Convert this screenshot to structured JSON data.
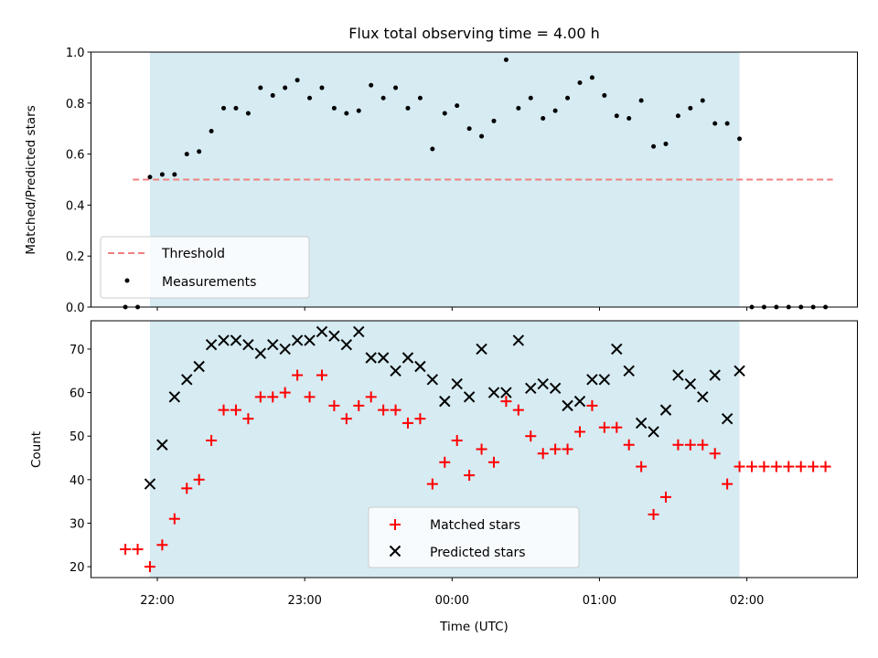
{
  "colors": {
    "shade": "#add8e6",
    "threshold": "#f08080",
    "measurements": "#000000",
    "matched": "#ff0000",
    "predicted": "#000000"
  },
  "chart_data": [
    {
      "type": "scatter",
      "title": "Flux total observing time = 4.00 h",
      "xlabel": "",
      "ylabel": "Matched/Predicted stars",
      "ylim": [
        0,
        1.0
      ],
      "yticks": [
        "0.0",
        "0.2",
        "0.4",
        "0.6",
        "0.8",
        "1.0"
      ],
      "shaded_time_range": [
        "21:57",
        "01:57"
      ],
      "threshold": {
        "name": "Threshold",
        "value": 0.5,
        "x_range": [
          "21:50",
          "02:35"
        ]
      },
      "series": [
        {
          "name": "Measurements",
          "style": "dot",
          "x": [
            "21:47",
            "21:52",
            "21:57",
            "22:02",
            "22:07",
            "22:12",
            "22:17",
            "22:22",
            "22:27",
            "22:32",
            "22:37",
            "22:42",
            "22:47",
            "22:52",
            "22:57",
            "23:02",
            "23:07",
            "23:12",
            "23:17",
            "23:22",
            "23:27",
            "23:32",
            "23:37",
            "23:42",
            "23:47",
            "23:52",
            "23:57",
            "00:02",
            "00:07",
            "00:12",
            "00:17",
            "00:22",
            "00:27",
            "00:32",
            "00:37",
            "00:42",
            "00:47",
            "00:52",
            "00:57",
            "01:02",
            "01:07",
            "01:12",
            "01:17",
            "01:22",
            "01:27",
            "01:32",
            "01:37",
            "01:42",
            "01:47",
            "01:52",
            "01:57",
            "02:02",
            "02:07",
            "02:12",
            "02:17",
            "02:22",
            "02:27",
            "02:32"
          ],
          "y": [
            0.0,
            0.0,
            0.51,
            0.52,
            0.52,
            0.6,
            0.61,
            0.69,
            0.78,
            0.78,
            0.76,
            0.86,
            0.83,
            0.86,
            0.89,
            0.82,
            0.86,
            0.78,
            0.76,
            0.77,
            0.87,
            0.82,
            0.86,
            0.78,
            0.82,
            0.62,
            0.76,
            0.79,
            0.7,
            0.67,
            0.73,
            0.97,
            0.78,
            0.82,
            0.74,
            0.77,
            0.82,
            0.88,
            0.9,
            0.83,
            0.75,
            0.74,
            0.81,
            0.63,
            0.64,
            0.75,
            0.78,
            0.81,
            0.72,
            0.72,
            0.66,
            0.0,
            0.0,
            0.0,
            0.0,
            0.0,
            0.0,
            0.0
          ]
        }
      ]
    },
    {
      "type": "scatter",
      "title": "",
      "xlabel": "Time (UTC)",
      "ylabel": "Count",
      "ylim": [
        17.5,
        76.5
      ],
      "xlim": [
        "21:33",
        "02:45"
      ],
      "xticks": [
        "22:00",
        "23:00",
        "00:00",
        "01:00",
        "02:00"
      ],
      "yticks": [
        "20",
        "30",
        "40",
        "50",
        "60",
        "70"
      ],
      "series": [
        {
          "name": "Matched stars",
          "style": "plus",
          "x": [
            "21:47",
            "21:52",
            "21:57",
            "22:02",
            "22:07",
            "22:12",
            "22:17",
            "22:22",
            "22:27",
            "22:32",
            "22:37",
            "22:42",
            "22:47",
            "22:52",
            "22:57",
            "23:02",
            "23:07",
            "23:12",
            "23:17",
            "23:22",
            "23:27",
            "23:32",
            "23:37",
            "23:42",
            "23:47",
            "23:52",
            "23:57",
            "00:02",
            "00:07",
            "00:12",
            "00:17",
            "00:22",
            "00:27",
            "00:32",
            "00:37",
            "00:42",
            "00:47",
            "00:52",
            "00:57",
            "01:02",
            "01:07",
            "01:12",
            "01:17",
            "01:22",
            "01:27",
            "01:32",
            "01:37",
            "01:42",
            "01:47",
            "01:52",
            "01:57",
            "02:02",
            "02:07",
            "02:12",
            "02:17",
            "02:22",
            "02:27",
            "02:32"
          ],
          "y": [
            24,
            24,
            20,
            25,
            31,
            38,
            40,
            49,
            56,
            56,
            54,
            59,
            59,
            60,
            64,
            59,
            64,
            57,
            54,
            57,
            59,
            56,
            56,
            53,
            54,
            39,
            44,
            49,
            41,
            47,
            44,
            58,
            56,
            50,
            46,
            47,
            47,
            51,
            57,
            52,
            52,
            48,
            43,
            32,
            36,
            48,
            48,
            48,
            46,
            39,
            43,
            43,
            43,
            43,
            43,
            43,
            43,
            43
          ]
        },
        {
          "name": "Predicted stars",
          "style": "x",
          "x": [
            "21:57",
            "22:02",
            "22:07",
            "22:12",
            "22:17",
            "22:22",
            "22:27",
            "22:32",
            "22:37",
            "22:42",
            "22:47",
            "22:52",
            "22:57",
            "23:02",
            "23:07",
            "23:12",
            "23:17",
            "23:22",
            "23:27",
            "23:32",
            "23:37",
            "23:42",
            "23:47",
            "23:52",
            "23:57",
            "00:02",
            "00:07",
            "00:12",
            "00:17",
            "00:22",
            "00:27",
            "00:32",
            "00:37",
            "00:42",
            "00:47",
            "00:52",
            "00:57",
            "01:02",
            "01:07",
            "01:12",
            "01:17",
            "01:22",
            "01:27",
            "01:32",
            "01:37",
            "01:42",
            "01:47",
            "01:52",
            "01:57"
          ],
          "y": [
            39,
            48,
            59,
            63,
            66,
            71,
            72,
            72,
            71,
            69,
            71,
            70,
            72,
            72,
            74,
            73,
            71,
            74,
            68,
            68,
            65,
            68,
            66,
            63,
            58,
            62,
            59,
            70,
            60,
            60,
            72,
            61,
            62,
            61,
            57,
            58,
            63,
            63,
            70,
            65,
            53,
            51,
            56,
            64,
            62,
            59,
            64,
            54,
            65
          ]
        }
      ]
    }
  ]
}
